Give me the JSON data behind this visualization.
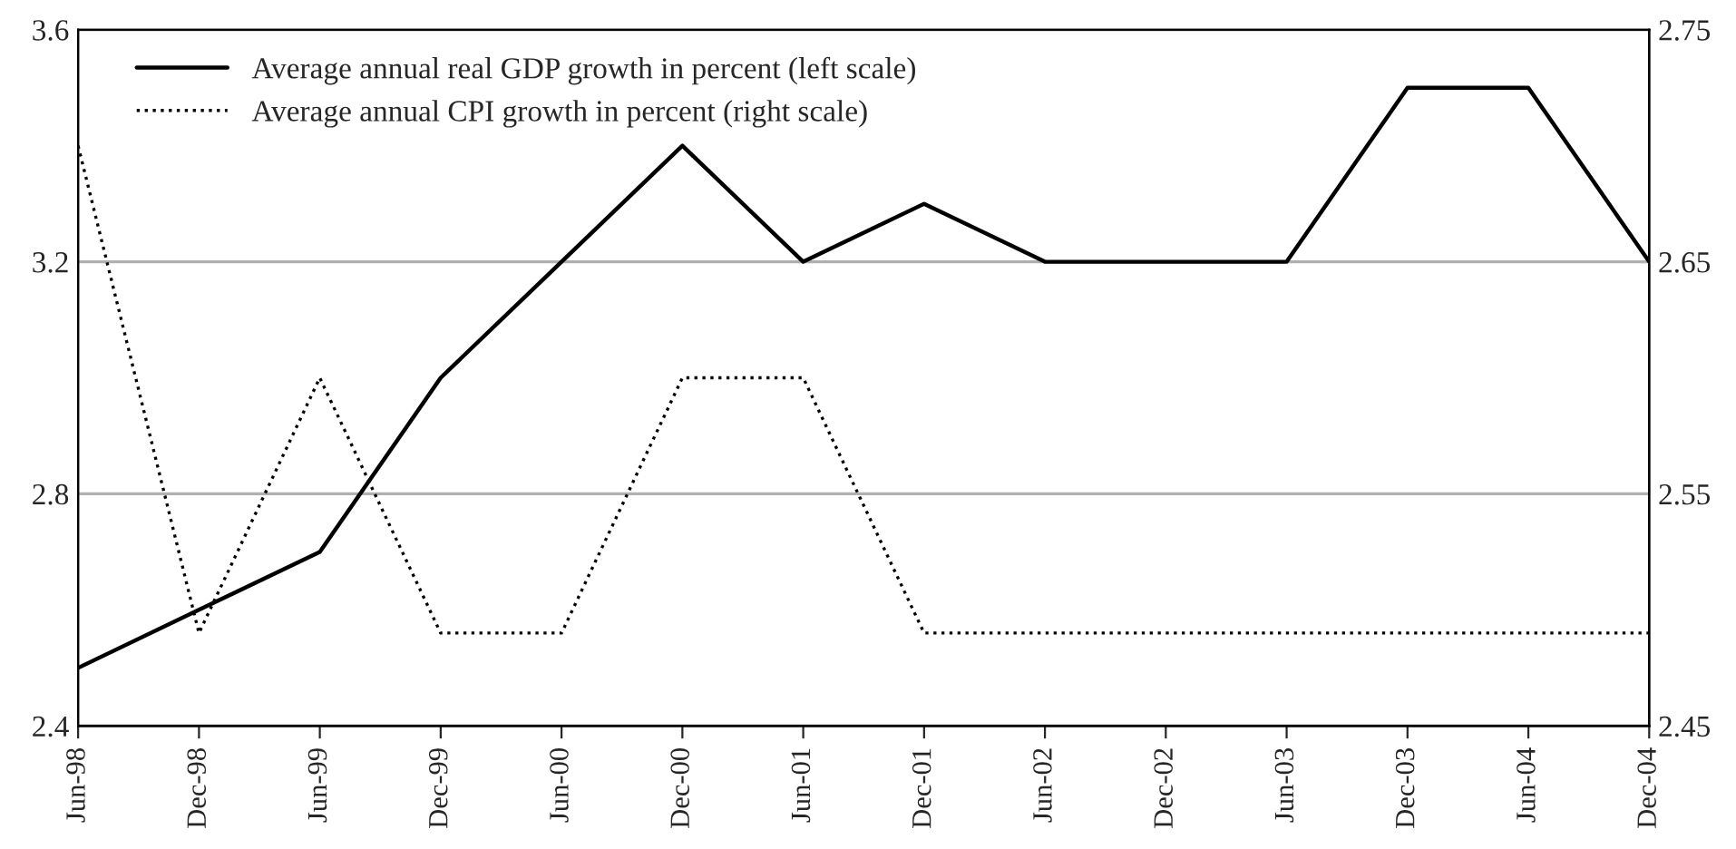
{
  "chart_data": {
    "type": "line",
    "categories": [
      "Jun-98",
      "Dec-98",
      "Jun-99",
      "Dec-99",
      "Jun-00",
      "Dec-00",
      "Jun-01",
      "Dec-01",
      "Jun-02",
      "Dec-02",
      "Jun-03",
      "Dec-03",
      "Jun-04",
      "Dec-04"
    ],
    "series": [
      {
        "name": "Average annual real GDP growth in percent (left scale)",
        "color": "#000000",
        "line_style": "solid",
        "values": [
          2.5,
          2.6,
          2.7,
          3.0,
          3.2,
          3.4,
          3.2,
          3.3,
          3.2,
          3.2,
          3.2,
          3.5,
          3.5,
          3.2
        ]
      },
      {
        "name": "Average annual CPI growth in percent (right scale)",
        "color": "#000000",
        "line_style": "dotted",
        "axis": "y2",
        "values": [
          2.7,
          2.49,
          2.6,
          2.49,
          2.49,
          2.6,
          2.6,
          2.49,
          2.49,
          2.49,
          2.49,
          2.49,
          2.49,
          2.49
        ]
      }
    ],
    "ylim": [
      2.4,
      3.6
    ],
    "yticks": [
      2.4,
      2.8,
      3.2,
      3.6
    ],
    "y2lim": [
      2.45,
      2.75
    ],
    "y2ticks": [
      2.45,
      2.55,
      2.65,
      2.75
    ],
    "grid": "y",
    "legend": "top left",
    "marker": "none"
  }
}
